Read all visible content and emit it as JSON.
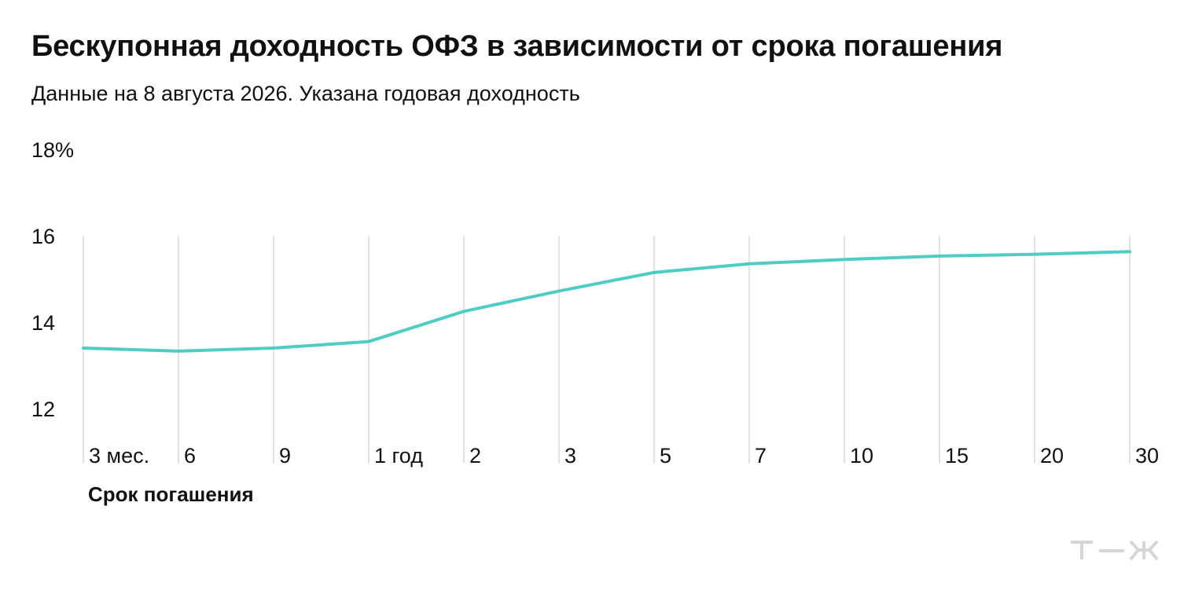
{
  "header": {
    "title": "Бескупонная доходность ОФЗ в зависимости от срока погашения",
    "subtitle": "Данные на 8 августа 2026. Указана годовая доходность"
  },
  "colors": {
    "line": "#4ecdc4",
    "grid": "#e3e3e3",
    "text": "#111111",
    "logo": "#d6d6d6"
  },
  "logo": {
    "text": "Т—Ж",
    "icon": "tzh-logo-icon"
  },
  "chart_data": {
    "type": "line",
    "title": "Бескупонная доходность ОФЗ в зависимости от срока погашения",
    "subtitle": "Данные на 8 августа 2026. Указана годовая доходность",
    "xlabel": "Срок погашения",
    "ylabel": "",
    "categories": [
      "3 мес.",
      "6",
      "9",
      "1 год",
      "2",
      "3",
      "5",
      "7",
      "10",
      "15",
      "20",
      "30"
    ],
    "series": [
      {
        "values": [
          13.4,
          13.33,
          13.4,
          13.55,
          14.25,
          14.72,
          15.15,
          15.35,
          15.45,
          15.53,
          15.57,
          15.63
        ]
      }
    ],
    "ylim": [
      11,
      18
    ],
    "yticks": [
      {
        "value": 18,
        "label": "18%"
      },
      {
        "value": 16,
        "label": "16"
      },
      {
        "value": 14,
        "label": "14"
      },
      {
        "value": 12,
        "label": "12"
      }
    ],
    "grid": "vertical"
  }
}
